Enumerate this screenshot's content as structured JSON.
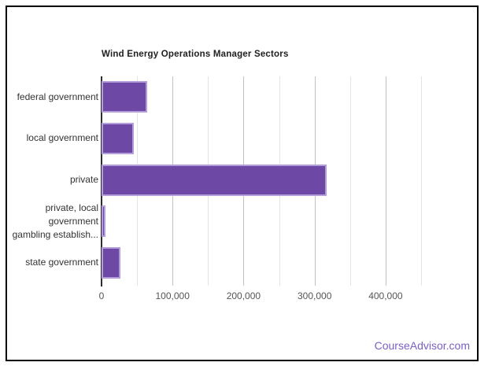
{
  "chart_data": {
    "type": "bar",
    "orientation": "horizontal",
    "title": "Wind Energy Operations Manager Sectors",
    "categories": [
      "federal government",
      "local government",
      "private",
      "private, local government gambling establish...",
      "state government"
    ],
    "category_label_lines": [
      [
        "federal government"
      ],
      [
        "local government"
      ],
      [
        "private"
      ],
      [
        "private, local",
        "government",
        "gambling establish..."
      ],
      [
        "state government"
      ]
    ],
    "values": [
      64000,
      45000,
      317000,
      5000,
      26000
    ],
    "xlabel": "",
    "ylabel": "",
    "xlim": [
      0,
      450000
    ],
    "x_ticks": [
      {
        "value": 0,
        "label": "0"
      },
      {
        "value": 100000,
        "label": "100,000"
      },
      {
        "value": 200000,
        "label": "200,000"
      },
      {
        "value": 300000,
        "label": "300,000"
      },
      {
        "value": 400000,
        "label": "400,000"
      }
    ],
    "minor_gridline_interval": 50000,
    "grid": true,
    "legend": "none",
    "colors": {
      "bar_fill": "#6d49a5",
      "bar_stroke": "#b49ddb",
      "major_gridline": "#c2c2c2",
      "minor_gridline": "#e4e4e4",
      "axis_line": "#2e2e2e",
      "title_text": "#212121",
      "tick_label_text": "#555555",
      "category_label_text": "#333333"
    }
  },
  "watermark": {
    "text": "CourseAdvisor.com",
    "color": "#7a5fc5"
  }
}
